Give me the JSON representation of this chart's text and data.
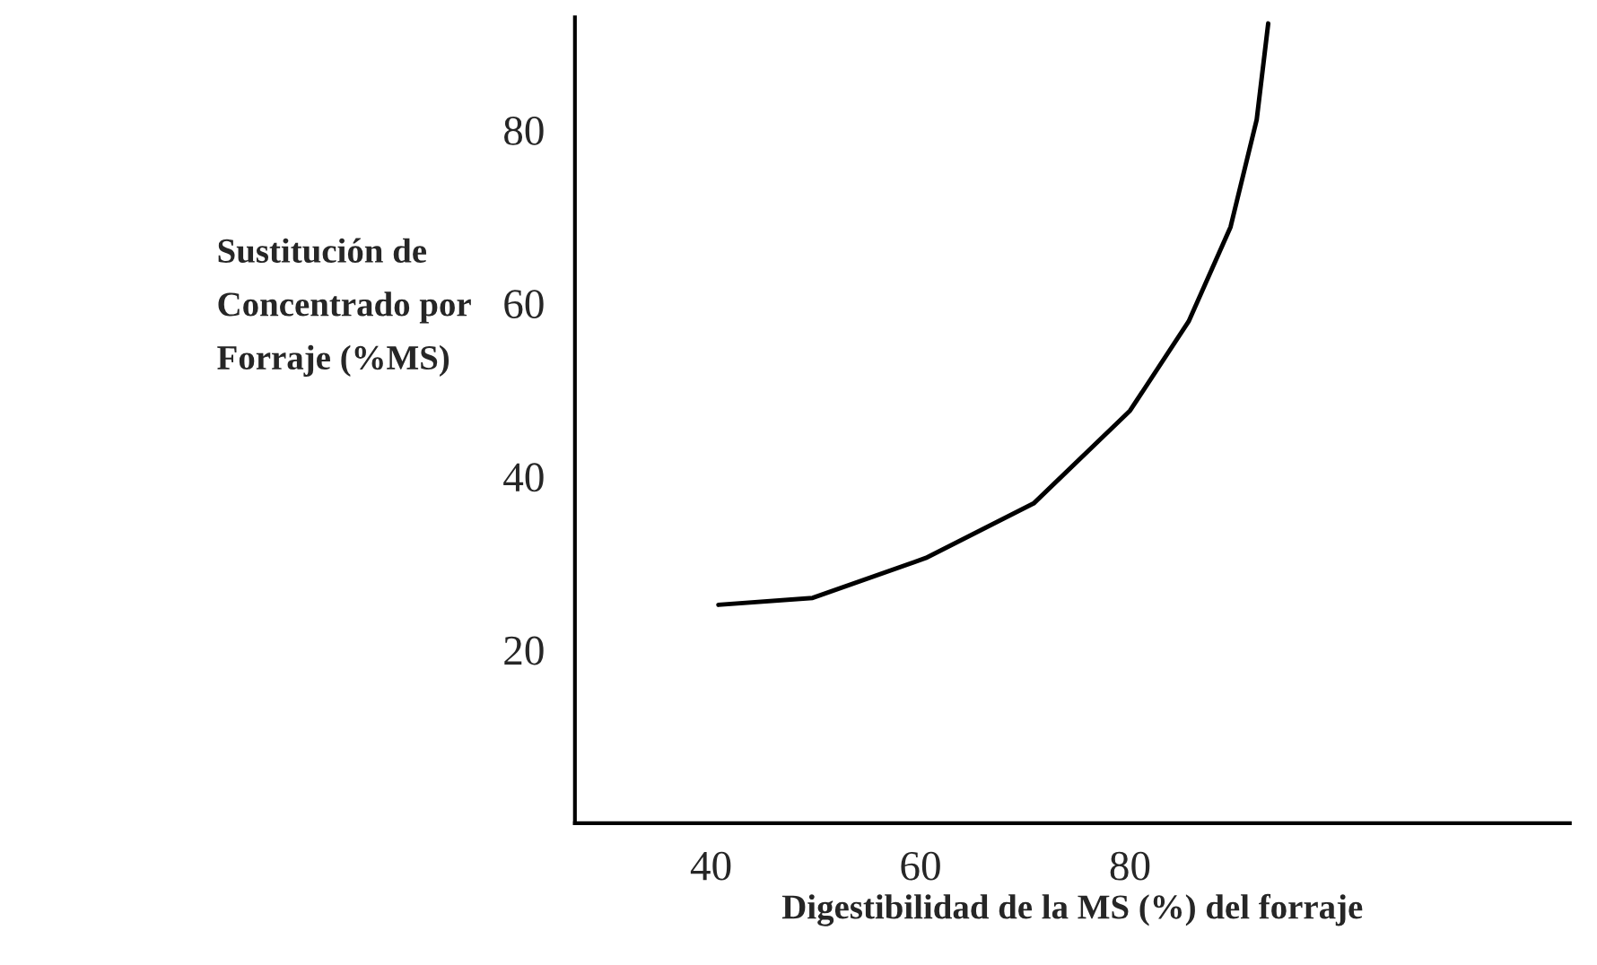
{
  "chart_data": {
    "type": "line",
    "xlabel": "Digestibilidad de la MS (%) del forraje",
    "ylabel": "Sustitución de\nConcentrado por\nForraje (%MS)",
    "x": [
      40.7,
      49.7,
      60.5,
      70.8,
      80,
      85.6,
      89.6,
      92.1,
      93.2
    ],
    "series": [
      {
        "color": "#000000",
        "values": [
          25.2,
          26.0,
          30.6,
          36.9,
          47.6,
          57.9,
          68.8,
          81.2,
          92.3
        ]
      }
    ],
    "xlim": [
      27,
      122
    ],
    "ylim": [
      0,
      93
    ],
    "xticks": [
      40,
      60,
      80
    ],
    "yticks": [
      20,
      40,
      60,
      80
    ],
    "grid": false,
    "legend": false,
    "marker": "none",
    "line_style": "solid"
  }
}
